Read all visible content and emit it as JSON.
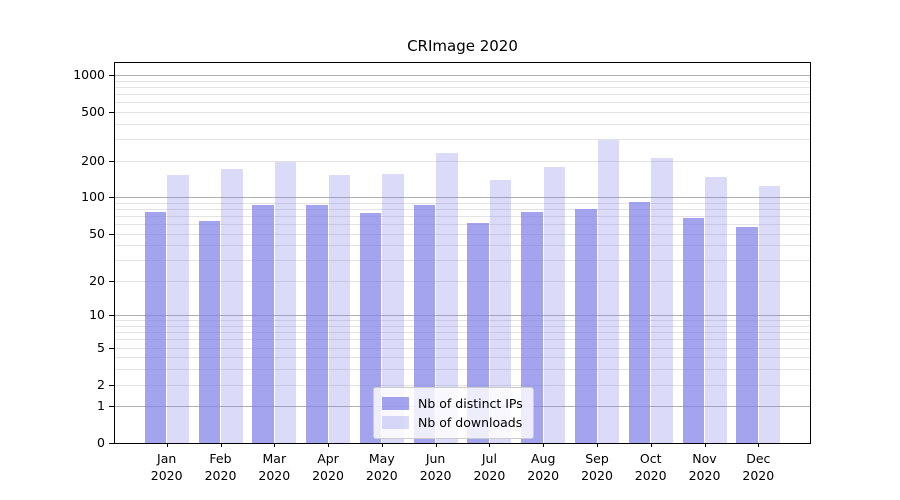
{
  "chart_data": {
    "type": "bar",
    "title": "CRImage 2020",
    "categories": [
      "Jan\n2020",
      "Feb\n2020",
      "Mar\n2020",
      "Apr\n2020",
      "May\n2020",
      "Jun\n2020",
      "Jul\n2020",
      "Aug\n2020",
      "Sep\n2020",
      "Oct\n2020",
      "Nov\n2020",
      "Dec\n2020"
    ],
    "series": [
      {
        "name": "Nb of distinct IPs",
        "color": "rgba(127,127,232,0.72)",
        "values": [
          76,
          64,
          87,
          86,
          74,
          87,
          61,
          76,
          80,
          92,
          68,
          57
        ]
      },
      {
        "name": "Nb of downloads",
        "color": "rgba(127,127,232,0.28)",
        "values": [
          153,
          170,
          196,
          154,
          156,
          230,
          140,
          178,
          295,
          210,
          148,
          125
        ]
      }
    ],
    "y_ticks": [
      0,
      1,
      2,
      5,
      10,
      20,
      50,
      100,
      200,
      500,
      1000
    ],
    "y_scale": "log10(1+v)",
    "ylim": [
      0,
      1257
    ],
    "xlabel": "",
    "ylabel": "",
    "grid": true,
    "grid_major_color": "#b0b0b0",
    "grid_minor_color": "#e3e3e3",
    "legend_position": "lower center"
  }
}
